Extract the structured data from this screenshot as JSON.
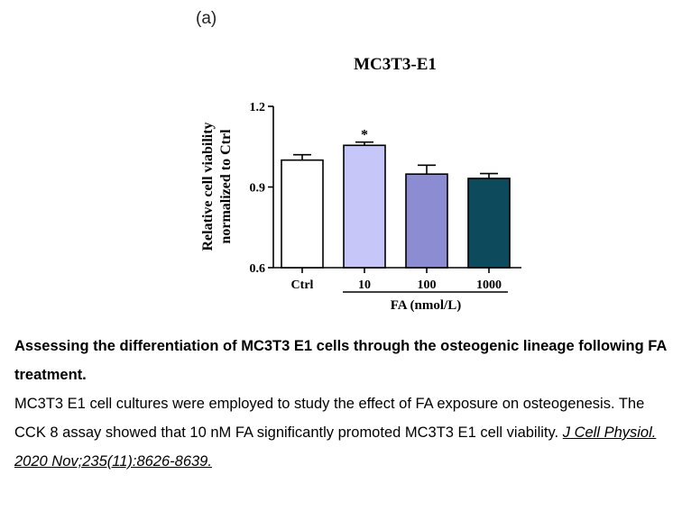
{
  "panel_label": "(a)",
  "chart_data": {
    "type": "bar",
    "title": "MC3T3-E1",
    "ylabel_lines": [
      "Relative cell viability",
      "normalized to Ctrl"
    ],
    "xlabel": "FA (nmol/L)",
    "categories": [
      "Ctrl",
      "10",
      "100",
      "1000"
    ],
    "values": [
      1.0,
      1.055,
      0.948,
      0.932
    ],
    "errors": [
      0.02,
      0.012,
      0.033,
      0.018
    ],
    "bar_colors": [
      "#ffffff",
      "#c6c6f8",
      "#8c8cd2",
      "#0c4a5c"
    ],
    "significance": [
      "",
      "*",
      "",
      ""
    ],
    "ylim": [
      0.6,
      1.2
    ],
    "yticks": [
      "0.6",
      "0.9",
      "1.2"
    ],
    "grid": false,
    "legend": "none"
  },
  "caption": {
    "title": "Assessing the differentiation of MC3T3 E1 cells through the osteogenic lineage following FA treatment.",
    "body": "MC3T3 E1 cell cultures were employed to study the effect of FA exposure on osteogenesis. The CCK 8 assay showed that 10 nM FA significantly promoted MC3T3 E1 cell viability.",
    "citation": "J Cell Physiol. 2020 Nov;235(11):8626-8639."
  }
}
